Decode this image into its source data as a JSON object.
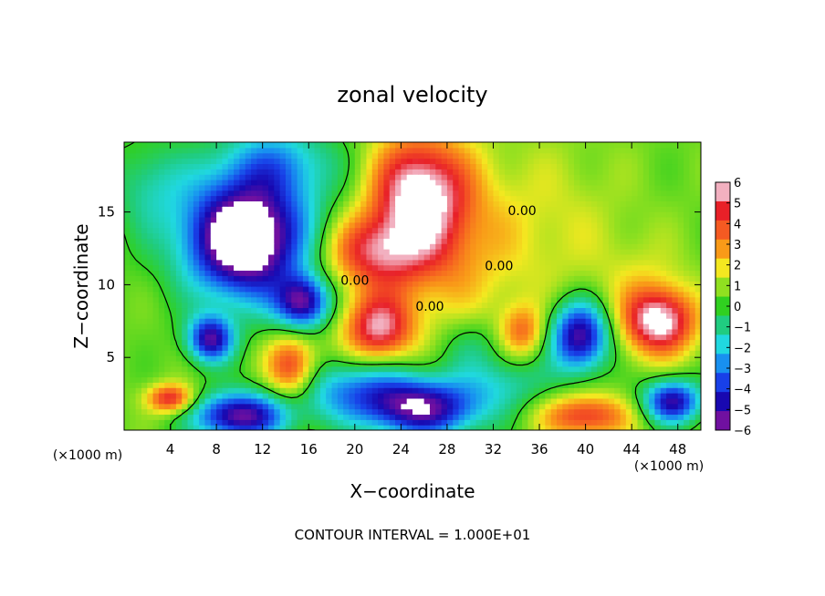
{
  "chart_data": {
    "type": "heatmap",
    "title": "zonal velocity",
    "xlabel": "X−coordinate",
    "ylabel": "Z−coordinate",
    "x_unit": "(×1000 m)",
    "z_unit": "(×1000 m)",
    "xlim": [
      0,
      50
    ],
    "zlim": [
      0,
      19.8
    ],
    "x_ticks": [
      4,
      8,
      12,
      16,
      20,
      24,
      28,
      32,
      36,
      40,
      44,
      48
    ],
    "z_ticks": [
      5,
      10,
      15
    ],
    "x_tick_labels": [
      "4",
      "8",
      "12",
      "16",
      "20",
      "24",
      "28",
      "32",
      "36",
      "40",
      "44",
      "48"
    ],
    "z_tick_labels": [
      "5",
      "10",
      "15"
    ],
    "colorbar": {
      "min": -6,
      "max": 6,
      "tick_labels": [
        "6",
        "5",
        "4",
        "3",
        "2",
        "1",
        "0",
        "−1",
        "−2",
        "−3",
        "−4",
        "−5",
        "−6"
      ],
      "colors": [
        "#f2b0c0",
        "#e82028",
        "#f55a22",
        "#f99a18",
        "#f4e820",
        "#90e020",
        "#30d020",
        "#20cc80",
        "#20d8e0",
        "#1890f0",
        "#1840e8",
        "#1808b0",
        "#7010a0"
      ]
    },
    "contour_labels": [
      {
        "text": "0.00",
        "x": 34.5,
        "z": 14.8
      },
      {
        "text": "0.00",
        "x": 32.5,
        "z": 11.0
      },
      {
        "text": "0.00",
        "x": 20.0,
        "z": 10.0
      },
      {
        "text": "0.00",
        "x": 26.5,
        "z": 8.2
      }
    ],
    "blobs": [
      {
        "x": 10.5,
        "z": 12.8,
        "sx": 4.8,
        "sz": 3.8,
        "v": -6.5
      },
      {
        "x": 10.5,
        "z": 14.5,
        "sx": 7.0,
        "sz": 4.5,
        "v": -3.0
      },
      {
        "x": 15.5,
        "z": 8.8,
        "sx": 2.3,
        "sz": 1.8,
        "v": -6.0
      },
      {
        "x": 7.5,
        "z": 6.3,
        "sx": 2.0,
        "sz": 1.6,
        "v": -6.0
      },
      {
        "x": 14.5,
        "z": 4.3,
        "sx": 2.2,
        "sz": 2.2,
        "v": 4.5
      },
      {
        "x": 22.0,
        "z": 7.0,
        "sx": 3.0,
        "sz": 2.3,
        "v": 5.0
      },
      {
        "x": 21.5,
        "z": 12.3,
        "sx": 4.5,
        "sz": 2.5,
        "v": 4.0
      },
      {
        "x": 25.5,
        "z": 16.5,
        "sx": 4.0,
        "sz": 3.8,
        "v": 5.0
      },
      {
        "x": 27.5,
        "z": 13.0,
        "sx": 6.0,
        "sz": 6.0,
        "v": 2.5
      },
      {
        "x": 37.5,
        "z": 14.0,
        "sx": 6.0,
        "sz": 6.0,
        "v": 1.0
      },
      {
        "x": 45.0,
        "z": 9.0,
        "sx": 4.0,
        "sz": 4.0,
        "v": 1.2
      },
      {
        "x": 39.5,
        "z": 6.5,
        "sx": 2.6,
        "sz": 2.4,
        "v": -6.5
      },
      {
        "x": 46.5,
        "z": 7.5,
        "sx": 3.0,
        "sz": 2.2,
        "v": 5.5
      },
      {
        "x": 47.5,
        "z": 2.0,
        "sx": 2.5,
        "sz": 1.5,
        "v": -6.0
      },
      {
        "x": 10.0,
        "z": 1.0,
        "sx": 4.0,
        "sz": 1.6,
        "v": -6.5
      },
      {
        "x": 20.0,
        "z": 2.8,
        "sx": 6.0,
        "sz": 2.2,
        "v": -3.5
      },
      {
        "x": 26.0,
        "z": 1.5,
        "sx": 5.0,
        "sz": 2.0,
        "v": -6.0
      },
      {
        "x": 33.0,
        "z": 3.3,
        "sx": 4.0,
        "sz": 2.0,
        "v": -2.0
      },
      {
        "x": 40.0,
        "z": 1.0,
        "sx": 4.0,
        "sz": 1.5,
        "v": 4.0
      },
      {
        "x": 4.0,
        "z": 2.2,
        "sx": 2.0,
        "sz": 1.0,
        "v": 4.5
      },
      {
        "x": 2.0,
        "z": 17.0,
        "sx": 3.0,
        "sz": 3.0,
        "v": -1.5
      },
      {
        "x": 13.5,
        "z": 18.5,
        "sx": 5.0,
        "sz": 2.5,
        "v": -2.5
      },
      {
        "x": 30.0,
        "z": 6.0,
        "sx": 3.0,
        "sz": 2.0,
        "v": -1.5
      },
      {
        "x": 34.5,
        "z": 6.8,
        "sx": 2.0,
        "sz": 1.8,
        "v": 3.0
      }
    ],
    "footer": "CONTOUR INTERVAL = 1.000E+01"
  }
}
